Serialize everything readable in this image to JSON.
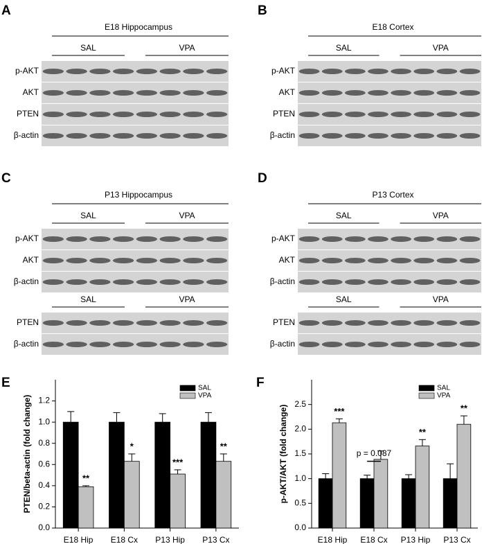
{
  "blots": [
    {
      "label": "A",
      "title": "E18 Hippocampus",
      "sections": [
        {
          "groups": [
            "SAL",
            "VPA"
          ],
          "rows": [
            "p-AKT",
            "AKT",
            "PTEN",
            "β-actin"
          ]
        }
      ]
    },
    {
      "label": "B",
      "title": "E18 Cortex",
      "sections": [
        {
          "groups": [
            "SAL",
            "VPA"
          ],
          "rows": [
            "p-AKT",
            "AKT",
            "PTEN",
            "β-actin"
          ]
        }
      ]
    },
    {
      "label": "C",
      "title": "P13 Hippocampus",
      "sections": [
        {
          "groups": [
            "SAL",
            "VPA"
          ],
          "rows": [
            "p-AKT",
            "AKT",
            "β-actin"
          ]
        },
        {
          "groups": [
            "SAL",
            "VPA"
          ],
          "rows": [
            "PTEN",
            "β-actin"
          ]
        }
      ]
    },
    {
      "label": "D",
      "title": "P13 Cortex",
      "sections": [
        {
          "groups": [
            "SAL",
            "VPA"
          ],
          "rows": [
            "p-AKT",
            "AKT",
            "β-actin"
          ]
        },
        {
          "groups": [
            "SAL",
            "VPA"
          ],
          "rows": [
            "PTEN",
            "β-actin"
          ]
        }
      ]
    }
  ],
  "chart_data": [
    {
      "type": "bar",
      "label": "E",
      "ylabel": "PTEN/beta-actin (fold change)",
      "categories": [
        "E18 Hip",
        "E18 Cx",
        "P13 Hip",
        "P13 Cx"
      ],
      "series": [
        {
          "name": "SAL",
          "color": "#000000",
          "values": [
            1.0,
            1.0,
            1.0,
            1.0
          ],
          "errors": [
            0.1,
            0.09,
            0.08,
            0.09
          ]
        },
        {
          "name": "VPA",
          "color": "#c0c0c0",
          "values": [
            0.39,
            0.63,
            0.51,
            0.63
          ],
          "errors": [
            0.01,
            0.07,
            0.04,
            0.07
          ]
        }
      ],
      "significance": [
        "**",
        "*",
        "***",
        "**"
      ],
      "bracket_labels": [
        null,
        null,
        null,
        null
      ],
      "ylim": [
        0,
        1.4
      ],
      "yticks": [
        {
          "value": 0,
          "label": "0.0"
        },
        0.2,
        0.4,
        0.6,
        0.8,
        {
          "value": 1,
          "label": "1.0"
        },
        1.2
      ],
      "legend": "upper right"
    },
    {
      "type": "bar",
      "label": "F",
      "ylabel": "p-AKT/AKT (fold change)",
      "categories": [
        "E18 Hip",
        "E18 Cx",
        "P13 Hip",
        "P13 Cx"
      ],
      "series": [
        {
          "name": "SAL",
          "color": "#000000",
          "values": [
            1.0,
            1.0,
            1.0,
            1.0
          ],
          "errors": [
            0.1,
            0.07,
            0.08,
            0.3
          ]
        },
        {
          "name": "VPA",
          "color": "#c0c0c0",
          "values": [
            2.13,
            1.39,
            1.66,
            2.1
          ],
          "errors": [
            0.08,
            0.17,
            0.13,
            0.17
          ]
        }
      ],
      "significance": [
        "***",
        null,
        "**",
        "**"
      ],
      "bracket_labels": [
        null,
        "p = 0.087",
        null,
        null
      ],
      "ylim": [
        0,
        3.0
      ],
      "yticks": [
        {
          "value": 0,
          "label": "0.0"
        },
        0.5,
        {
          "value": 1,
          "label": "1.0"
        },
        1.5,
        {
          "value": 2,
          "label": "2.0"
        },
        2.5
      ],
      "legend": "upper right"
    }
  ]
}
